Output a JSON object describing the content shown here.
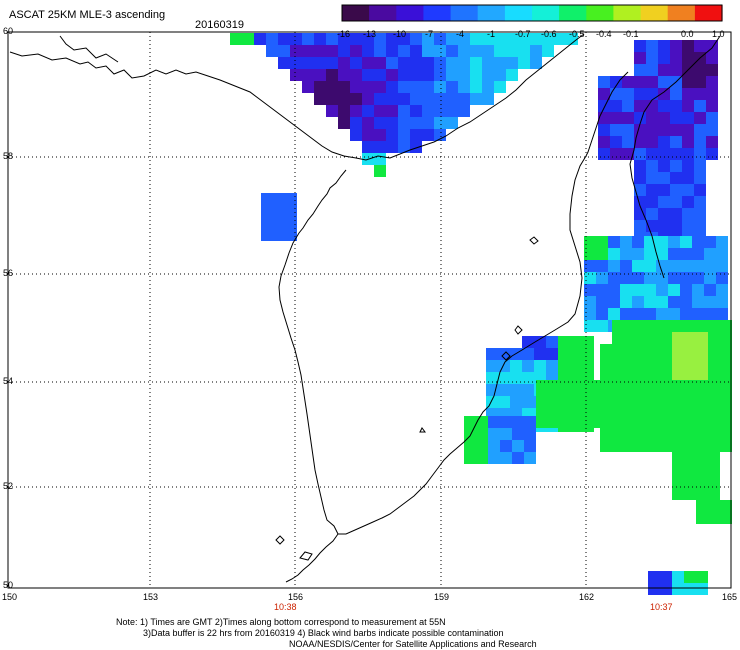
{
  "header": {
    "title": "ASCAT 25KM MLE-3 ascending",
    "date": "20160319"
  },
  "colorbar": {
    "labels": [
      "-16",
      "-13",
      "-10",
      "-7",
      "-4",
      "-1",
      "-0.7",
      "-0.6",
      "-0.5",
      "-0.4",
      "-0.1",
      "0.0",
      "1.0"
    ],
    "colors": [
      "#3a0a4a",
      "#4a0aa0",
      "#3a10d8",
      "#1f3aff",
      "#1f74ff",
      "#22a8ff",
      "#18dcff",
      "#14f0d8",
      "#10f06a",
      "#48f020",
      "#b0f020",
      "#f0d020",
      "#f08020",
      "#f01010"
    ]
  },
  "axes": {
    "lat_labels": [
      "60",
      "58",
      "56",
      "54",
      "52",
      "50"
    ],
    "lon_labels": [
      "150",
      "153",
      "156",
      "159",
      "162",
      "165"
    ],
    "times": [
      "10:38",
      "10:37"
    ]
  },
  "notes": {
    "line1": "Note: 1) Times are GMT 2)Times along bottom correspond to measurement at 55N",
    "line2": "3)Data buffer is 22 hrs from 20160319 4) Black wind barbs indicate possible contamination",
    "line3": "NOAA/NESDIS/Center for Satellite Applications and Research"
  },
  "legend_colors": {
    "deep_purple": "#3d0a6e",
    "purple": "#4a10c0",
    "blue": "#2030f0",
    "mid_blue": "#2060ff",
    "light_blue": "#20a0ff",
    "cyan": "#18e0f0",
    "green": "#10e840",
    "yellow_green": "#98f040"
  }
}
